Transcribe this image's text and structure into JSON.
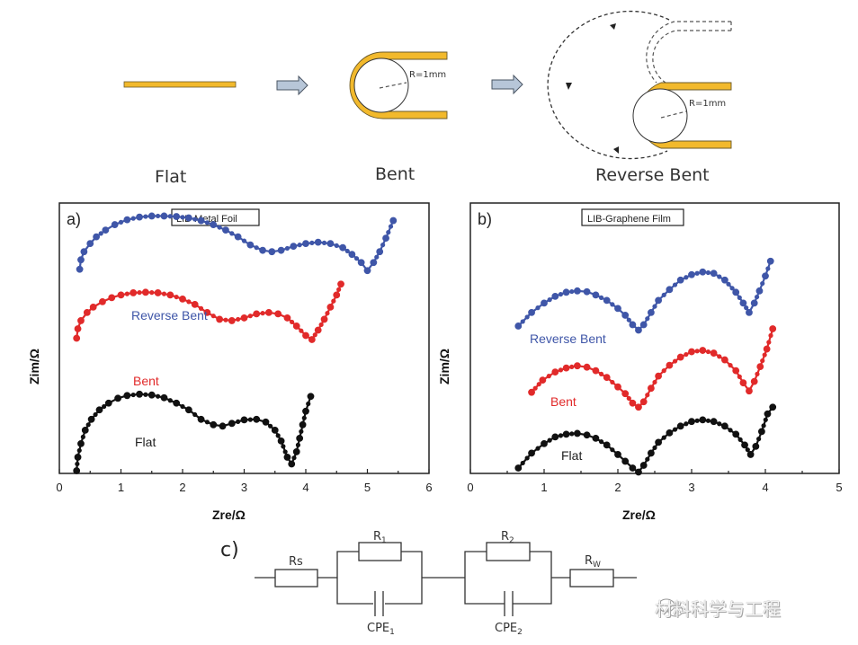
{
  "schematic": {
    "stages": [
      {
        "label": "Flat"
      },
      {
        "label": "Bent",
        "radius_label": "R=1mm"
      },
      {
        "label": "Reverse Bent",
        "radius_label": "R=1mm"
      }
    ],
    "colors": {
      "foil": "#f2b92c",
      "arrow": "#b7c6d8"
    }
  },
  "circuit": {
    "panel_label": "c)",
    "components": {
      "rs": "Rs",
      "r1": "R",
      "r1_sub": "1",
      "cpe1": "CPE",
      "cpe1_sub": "1",
      "r2": "R",
      "r2_sub": "2",
      "cpe2": "CPE",
      "cpe2_sub": "2",
      "rw": "R",
      "rw_sub": "W"
    }
  },
  "watermark": {
    "text": "材料科学与工程"
  },
  "chart_data": [
    {
      "type": "scatter",
      "panel_label": "a)",
      "title": "LIB-Metal Foil",
      "xlabel": "Zre/Ω",
      "ylabel": "Zim/Ω",
      "xlim": [
        0,
        6
      ],
      "xticks": [
        "0",
        "1",
        "2",
        "3",
        "4",
        "5",
        "6"
      ],
      "ylim": [
        0,
        10
      ],
      "yticks_shown": false,
      "series": [
        {
          "name": "Reverse Bent",
          "color": "#3f56a8",
          "x": [
            0.33,
            0.35,
            0.4,
            0.5,
            0.6,
            0.75,
            0.9,
            1.1,
            1.3,
            1.5,
            1.7,
            1.9,
            2.1,
            2.3,
            2.5,
            2.7,
            2.9,
            3.1,
            3.3,
            3.45,
            3.6,
            3.8,
            4.0,
            4.2,
            4.4,
            4.6,
            4.75,
            4.9,
            5.0,
            5.1,
            5.2,
            5.3,
            5.42
          ],
          "y": [
            7.55,
            7.9,
            8.2,
            8.5,
            8.75,
            9.0,
            9.2,
            9.38,
            9.48,
            9.52,
            9.52,
            9.5,
            9.45,
            9.35,
            9.2,
            9.0,
            8.75,
            8.45,
            8.25,
            8.2,
            8.25,
            8.4,
            8.5,
            8.55,
            8.5,
            8.35,
            8.1,
            7.8,
            7.5,
            7.8,
            8.2,
            8.7,
            9.35
          ]
        },
        {
          "name": "Bent",
          "color": "#e12a2a",
          "x": [
            0.28,
            0.3,
            0.35,
            0.45,
            0.55,
            0.7,
            0.85,
            1.0,
            1.2,
            1.4,
            1.6,
            1.8,
            2.0,
            2.2,
            2.4,
            2.6,
            2.8,
            3.0,
            3.2,
            3.4,
            3.55,
            3.7,
            3.85,
            4.0,
            4.1,
            4.2,
            4.3,
            4.4,
            4.5,
            4.57
          ],
          "y": [
            5.0,
            5.35,
            5.65,
            5.95,
            6.15,
            6.35,
            6.5,
            6.6,
            6.68,
            6.7,
            6.68,
            6.6,
            6.45,
            6.25,
            5.95,
            5.7,
            5.65,
            5.75,
            5.9,
            5.95,
            5.9,
            5.75,
            5.45,
            5.1,
            4.95,
            5.3,
            5.7,
            6.15,
            6.6,
            7.0
          ]
        },
        {
          "name": "Flat",
          "color": "#111111",
          "x": [
            0.28,
            0.3,
            0.35,
            0.42,
            0.52,
            0.65,
            0.8,
            0.95,
            1.1,
            1.3,
            1.5,
            1.7,
            1.9,
            2.1,
            2.3,
            2.5,
            2.65,
            2.8,
            3.0,
            3.2,
            3.35,
            3.5,
            3.6,
            3.7,
            3.77,
            3.85,
            3.9,
            3.95,
            4.0,
            4.08
          ],
          "y": [
            0.1,
            0.6,
            1.1,
            1.6,
            2.0,
            2.35,
            2.6,
            2.78,
            2.88,
            2.93,
            2.9,
            2.8,
            2.6,
            2.35,
            2.0,
            1.8,
            1.75,
            1.85,
            1.98,
            2.0,
            1.9,
            1.6,
            1.2,
            0.6,
            0.35,
            0.8,
            1.3,
            1.8,
            2.3,
            2.85
          ]
        }
      ]
    },
    {
      "type": "scatter",
      "panel_label": "b)",
      "title": "LIB-Graphene Film",
      "xlabel": "Zre/Ω",
      "ylabel": "Zim/Ω",
      "xlim": [
        0,
        5
      ],
      "xticks": [
        "0",
        "1",
        "2",
        "3",
        "4",
        "5"
      ],
      "ylim": [
        0,
        10
      ],
      "yticks_shown": false,
      "series": [
        {
          "name": "Reverse Bent",
          "color": "#3f56a8",
          "x": [
            0.65,
            0.83,
            1.0,
            1.15,
            1.3,
            1.45,
            1.58,
            1.7,
            1.85,
            2.0,
            2.1,
            2.2,
            2.28,
            2.35,
            2.45,
            2.55,
            2.7,
            2.85,
            3.0,
            3.15,
            3.3,
            3.45,
            3.6,
            3.7,
            3.78,
            3.85,
            3.92,
            4.0,
            4.07
          ],
          "y": [
            5.45,
            5.95,
            6.3,
            6.55,
            6.7,
            6.75,
            6.72,
            6.6,
            6.4,
            6.1,
            5.85,
            5.5,
            5.3,
            5.5,
            5.95,
            6.4,
            6.8,
            7.15,
            7.35,
            7.45,
            7.4,
            7.15,
            6.7,
            6.3,
            5.95,
            6.3,
            6.75,
            7.3,
            7.85
          ]
        },
        {
          "name": "Bent",
          "color": "#e12a2a",
          "x": [
            0.83,
            0.98,
            1.15,
            1.3,
            1.45,
            1.58,
            1.7,
            1.85,
            2.0,
            2.1,
            2.2,
            2.28,
            2.35,
            2.45,
            2.55,
            2.7,
            2.85,
            3.0,
            3.15,
            3.3,
            3.45,
            3.6,
            3.7,
            3.78,
            3.85,
            3.93,
            4.02,
            4.1
          ],
          "y": [
            3.0,
            3.45,
            3.75,
            3.9,
            3.98,
            3.93,
            3.8,
            3.55,
            3.2,
            2.95,
            2.6,
            2.45,
            2.65,
            3.15,
            3.6,
            4.0,
            4.3,
            4.5,
            4.55,
            4.45,
            4.2,
            3.8,
            3.35,
            3.05,
            3.4,
            3.95,
            4.6,
            5.35
          ]
        },
        {
          "name": "Flat",
          "color": "#111111",
          "x": [
            0.65,
            0.83,
            1.0,
            1.15,
            1.3,
            1.45,
            1.58,
            1.7,
            1.85,
            2.0,
            2.1,
            2.2,
            2.28,
            2.35,
            2.45,
            2.55,
            2.7,
            2.85,
            3.0,
            3.15,
            3.3,
            3.45,
            3.6,
            3.72,
            3.8,
            3.87,
            3.95,
            4.03,
            4.1
          ],
          "y": [
            0.2,
            0.75,
            1.1,
            1.35,
            1.45,
            1.48,
            1.42,
            1.3,
            1.05,
            0.7,
            0.45,
            0.2,
            0.05,
            0.3,
            0.75,
            1.15,
            1.5,
            1.75,
            1.92,
            1.98,
            1.92,
            1.75,
            1.45,
            1.05,
            0.7,
            1.0,
            1.55,
            2.2,
            2.45
          ]
        }
      ]
    }
  ]
}
